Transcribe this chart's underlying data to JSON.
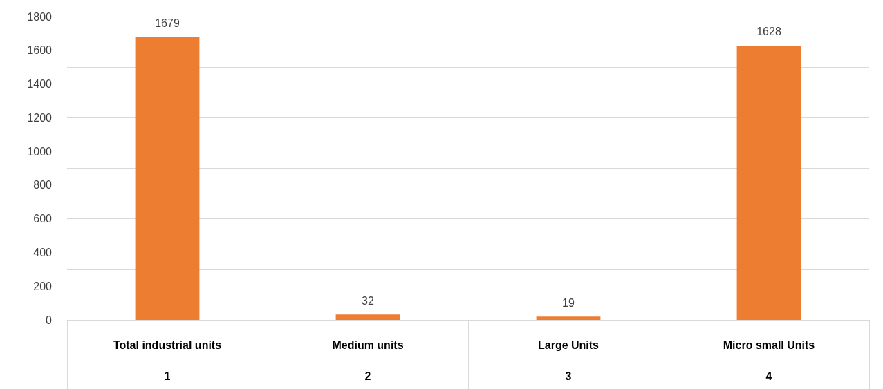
{
  "chart_data": {
    "type": "bar",
    "categories": [
      "Total industrial units",
      "Medium units",
      "Large Units",
      "Micro small Units"
    ],
    "values": [
      1679,
      32,
      19,
      1628
    ],
    "color": "#ed7d31",
    "ylim": [
      0,
      1800
    ],
    "yticks": [
      0,
      200,
      400,
      600,
      800,
      1000,
      1200,
      1400,
      1600,
      1800
    ],
    "grid": "y",
    "data_labels": true,
    "annotations": [
      "1",
      "2",
      "3",
      "4"
    ]
  }
}
